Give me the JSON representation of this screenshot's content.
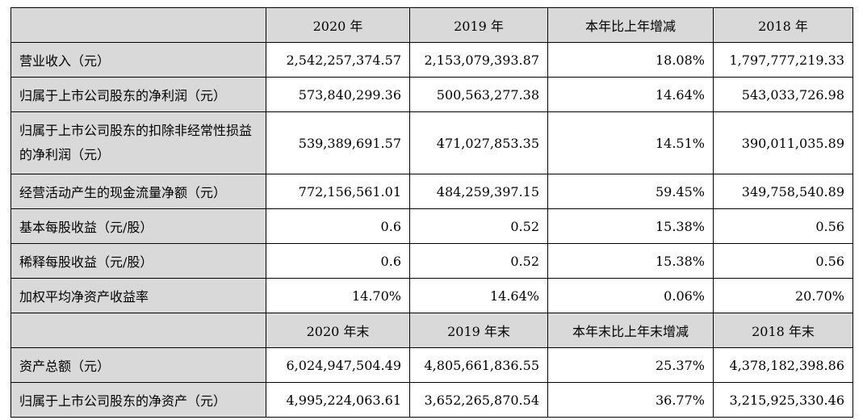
{
  "header1": [
    "",
    "2020 年",
    "2019 年",
    "本年比上年增减",
    "2018 年"
  ],
  "rows1": [
    {
      "label": "营业收入（元）",
      "values": [
        "2,542,257,374.57",
        "2,153,079,393.87",
        "18.08%",
        "1,797,777,219.33"
      ]
    },
    {
      "label": "归属于上市公司股东的净利润（元）",
      "values": [
        "573,840,299.36",
        "500,563,277.38",
        "14.64%",
        "543,033,726.98"
      ]
    },
    {
      "label": "归属于上市公司股东的扣除非经常性损益的净利润（元）",
      "values": [
        "539,389,691.57",
        "471,027,853.35",
        "14.51%",
        "390,011,035.89"
      ]
    },
    {
      "label": "经营活动产生的现金流量净额（元）",
      "values": [
        "772,156,561.01",
        "484,259,397.15",
        "59.45%",
        "349,758,540.89"
      ]
    },
    {
      "label": "基本每股收益（元/股）",
      "values": [
        "0.6",
        "0.52",
        "15.38%",
        "0.56"
      ]
    },
    {
      "label": "稀释每股收益（元/股）",
      "values": [
        "0.6",
        "0.52",
        "15.38%",
        "0.56"
      ]
    },
    {
      "label": "加权平均净资产收益率",
      "values": [
        "14.70%",
        "14.64%",
        "0.06%",
        "20.70%"
      ]
    }
  ],
  "header2": [
    "",
    "2020 年末",
    "2019 年末",
    "本年末比上年末增减",
    "2018 年末"
  ],
  "rows2": [
    {
      "label": "资产总额（元）",
      "values": [
        "6,024,947,504.49",
        "4,805,661,836.55",
        "25.37%",
        "4,378,182,398.86"
      ]
    },
    {
      "label": "归属于上市公司股东的净资产（元）",
      "values": [
        "4,995,224,063.61",
        "3,652,265,870.54",
        "36.77%",
        "3,215,925,330.46"
      ]
    }
  ]
}
